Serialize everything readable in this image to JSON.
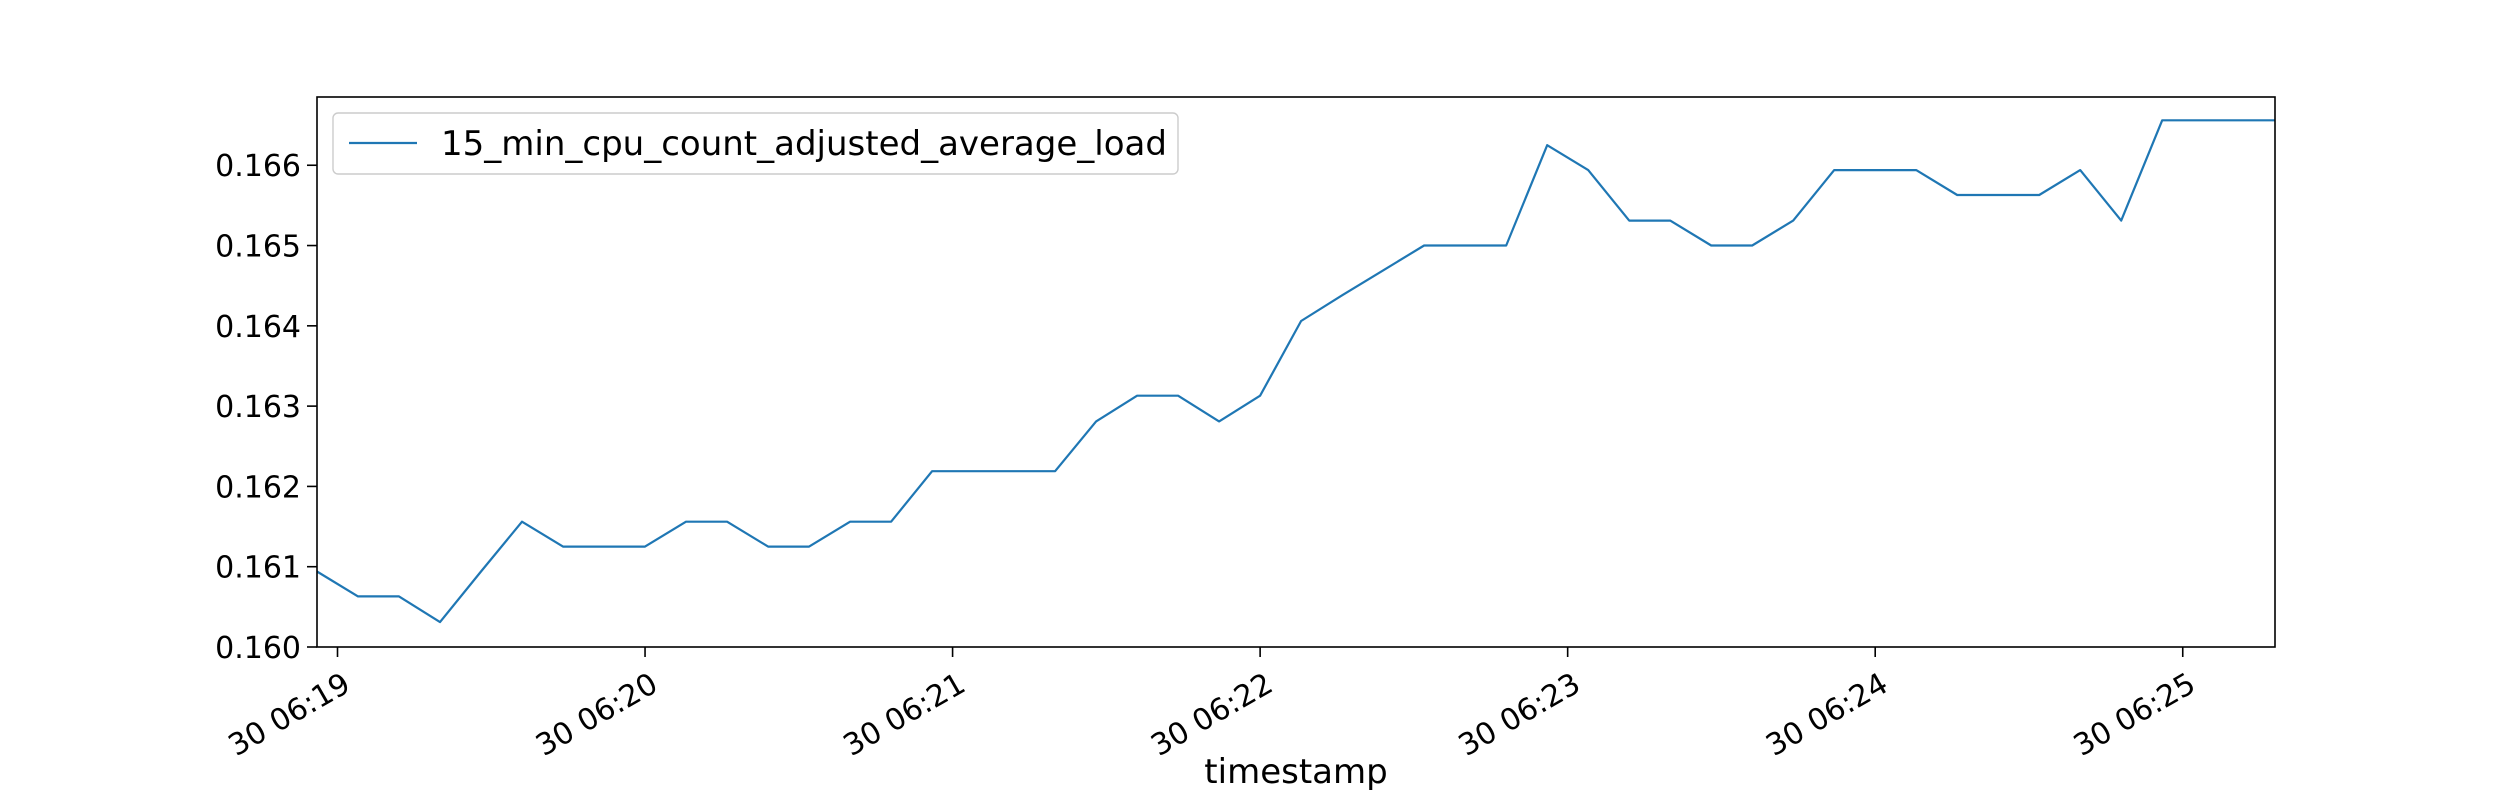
{
  "chart_data": {
    "type": "line",
    "title": "",
    "xlabel": "timestamp",
    "ylabel": "",
    "xlim": [
      "30 06:18:56",
      "30 06:25:18"
    ],
    "ylim": [
      0.16,
      0.16685
    ],
    "grid": false,
    "legend_position": "top-left",
    "x_ticks": [
      "30 06:19",
      "30 06:20",
      "30 06:21",
      "30 06:22",
      "30 06:23",
      "30 06:24",
      "30 06:25"
    ],
    "y_ticks": [
      "0.160",
      "0.161",
      "0.162",
      "0.163",
      "0.164",
      "0.165",
      "0.166"
    ],
    "x": [
      "30 06:18:56",
      "30 06:19:04",
      "30 06:19:12",
      "30 06:19:20",
      "30 06:19:28",
      "30 06:19:36",
      "30 06:19:44",
      "30 06:19:52",
      "30 06:20:00",
      "30 06:20:08",
      "30 06:20:16",
      "30 06:20:24",
      "30 06:20:32",
      "30 06:20:40",
      "30 06:20:48",
      "30 06:20:56",
      "30 06:21:04",
      "30 06:21:12",
      "30 06:21:20",
      "30 06:21:28",
      "30 06:21:36",
      "30 06:21:44",
      "30 06:21:52",
      "30 06:22:00",
      "30 06:22:08",
      "30 06:22:16",
      "30 06:22:24",
      "30 06:22:32",
      "30 06:22:40",
      "30 06:22:48",
      "30 06:22:56",
      "30 06:23:04",
      "30 06:23:12",
      "30 06:23:20",
      "30 06:23:28",
      "30 06:23:36",
      "30 06:23:44",
      "30 06:23:52",
      "30 06:24:00",
      "30 06:24:08",
      "30 06:24:16",
      "30 06:24:24",
      "30 06:24:32",
      "30 06:24:40",
      "30 06:24:48",
      "30 06:24:56",
      "30 06:25:04",
      "30 06:25:12",
      "30 06:25:18"
    ],
    "series": [
      {
        "name": "15_min_cpu_count_adjusted_average_load",
        "color": "#1f77b4",
        "values": [
          0.16094,
          0.16063,
          0.16063,
          0.16031,
          0.16094,
          0.16156,
          0.16125,
          0.16125,
          0.16125,
          0.16156,
          0.16156,
          0.16125,
          0.16125,
          0.16156,
          0.16156,
          0.16219,
          0.16219,
          0.16219,
          0.16219,
          0.16281,
          0.16313,
          0.16313,
          0.16281,
          0.16313,
          0.16406,
          0.16438,
          0.16469,
          0.165,
          0.165,
          0.165,
          0.16625,
          0.16594,
          0.16531,
          0.16531,
          0.165,
          0.165,
          0.16531,
          0.16594,
          0.16594,
          0.16594,
          0.16563,
          0.16563,
          0.16563,
          0.16594,
          0.16531,
          0.16656,
          0.16656,
          0.16656,
          0.16656
        ]
      }
    ]
  }
}
